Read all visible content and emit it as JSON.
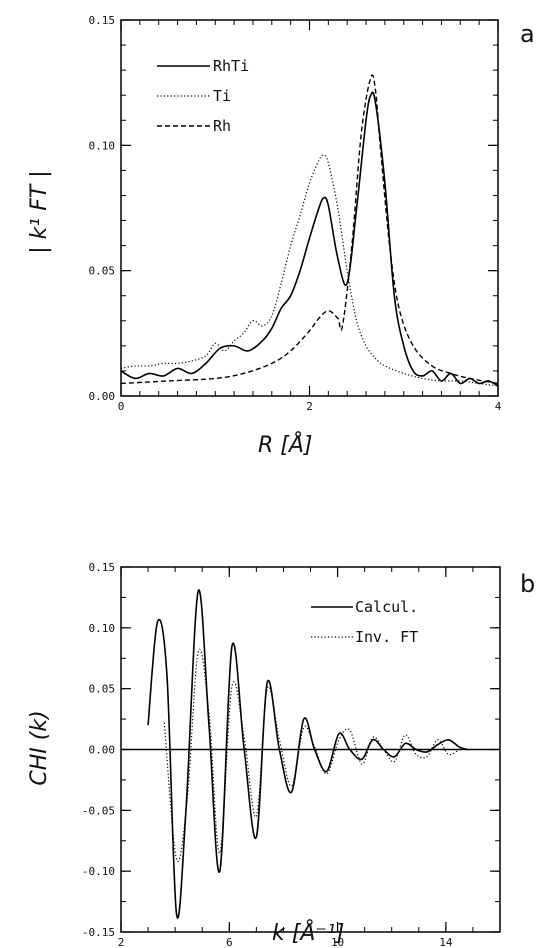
{
  "chart_data": [
    {
      "type": "line",
      "panel_label": "a",
      "xlabel": "R  [Å]",
      "ylabel": "| k¹ FT |",
      "xlim": [
        0,
        4
      ],
      "ylim": [
        0,
        0.15
      ],
      "x_ticks": [
        {
          "v": 0,
          "label": "0"
        },
        {
          "v": 2,
          "label": "2"
        },
        {
          "v": 4,
          "label": "4"
        }
      ],
      "y_ticks": [
        {
          "v": 0,
          "label": "0.00"
        },
        {
          "v": 0.05,
          "label": "0.05"
        },
        {
          "v": 0.1,
          "label": "0.10"
        },
        {
          "v": 0.15,
          "label": "0.15"
        }
      ],
      "legend_position": "top-left",
      "series": [
        {
          "name": "RhTi",
          "style": "solid",
          "x": [
            0,
            0.15,
            0.3,
            0.45,
            0.6,
            0.75,
            0.9,
            1.05,
            1.2,
            1.35,
            1.5,
            1.6,
            1.7,
            1.8,
            1.9,
            2.0,
            2.1,
            2.15,
            2.2,
            2.3,
            2.4,
            2.5,
            2.6,
            2.65,
            2.7,
            2.8,
            2.9,
            3.0,
            3.1,
            3.2,
            3.3,
            3.4,
            3.5,
            3.6,
            3.7,
            3.8,
            3.9,
            4.0
          ],
          "y": [
            0.01,
            0.007,
            0.009,
            0.008,
            0.011,
            0.009,
            0.013,
            0.019,
            0.02,
            0.018,
            0.022,
            0.027,
            0.035,
            0.04,
            0.05,
            0.063,
            0.075,
            0.079,
            0.076,
            0.055,
            0.045,
            0.075,
            0.11,
            0.12,
            0.117,
            0.085,
            0.04,
            0.02,
            0.01,
            0.008,
            0.01,
            0.006,
            0.009,
            0.005,
            0.007,
            0.005,
            0.006,
            0.004
          ]
        },
        {
          "name": "Ti",
          "style": "dotted",
          "x": [
            0,
            0.15,
            0.3,
            0.45,
            0.6,
            0.75,
            0.9,
            1.0,
            1.1,
            1.2,
            1.3,
            1.4,
            1.5,
            1.6,
            1.7,
            1.8,
            1.9,
            2.0,
            2.1,
            2.15,
            2.2,
            2.3,
            2.4,
            2.5,
            2.6,
            2.7,
            2.8,
            3.0,
            3.2,
            3.4,
            3.6,
            3.8,
            4.0
          ],
          "y": [
            0.011,
            0.012,
            0.012,
            0.013,
            0.013,
            0.014,
            0.016,
            0.021,
            0.018,
            0.022,
            0.025,
            0.03,
            0.028,
            0.032,
            0.045,
            0.06,
            0.072,
            0.085,
            0.094,
            0.096,
            0.093,
            0.075,
            0.05,
            0.03,
            0.02,
            0.015,
            0.012,
            0.009,
            0.007,
            0.006,
            0.006,
            0.005,
            0.004
          ]
        },
        {
          "name": "Rh",
          "style": "dashed",
          "x": [
            0,
            0.5,
            1.0,
            1.3,
            1.6,
            1.8,
            2.0,
            2.1,
            2.2,
            2.3,
            2.35,
            2.45,
            2.55,
            2.65,
            2.7,
            2.75,
            2.85,
            2.95,
            3.1,
            3.3,
            3.5,
            3.7,
            4.0
          ],
          "y": [
            0.005,
            0.006,
            0.007,
            0.009,
            0.013,
            0.018,
            0.026,
            0.031,
            0.034,
            0.031,
            0.028,
            0.06,
            0.105,
            0.127,
            0.122,
            0.1,
            0.06,
            0.035,
            0.02,
            0.012,
            0.009,
            0.007,
            0.005
          ]
        }
      ]
    },
    {
      "type": "line",
      "panel_label": "b",
      "xlabel": "k  [Å⁻¹]",
      "ylabel": "CHI (k)",
      "xlim": [
        2,
        16
      ],
      "ylim": [
        -0.15,
        0.15
      ],
      "x_ticks": [
        {
          "v": 2,
          "label": "2"
        },
        {
          "v": 6,
          "label": "6"
        },
        {
          "v": 10,
          "label": "10"
        },
        {
          "v": 14,
          "label": "14"
        }
      ],
      "y_ticks": [
        {
          "v": 0.15,
          "label": "0.15"
        },
        {
          "v": 0.1,
          "label": "0.10"
        },
        {
          "v": 0.05,
          "label": "0.05"
        },
        {
          "v": 0.0,
          "label": "0.00"
        },
        {
          "v": -0.05,
          "label": "-0.05"
        },
        {
          "v": -0.1,
          "label": "-0.10"
        },
        {
          "v": -0.15,
          "label": "-0.15"
        }
      ],
      "legend_position": "top-right",
      "zero_line": true,
      "series": [
        {
          "name": "Calcul.",
          "style": "solid",
          "x": [
            3.0,
            3.35,
            3.7,
            4.05,
            4.4,
            4.85,
            5.25,
            5.65,
            6.1,
            6.55,
            7.0,
            7.4,
            7.85,
            8.3,
            8.75,
            9.15,
            9.6,
            10.05,
            10.45,
            10.9,
            11.3,
            11.7,
            12.1,
            12.5,
            12.9,
            13.3,
            13.7,
            14.1,
            14.5,
            14.8
          ],
          "y": [
            0.02,
            0.105,
            0.06,
            -0.135,
            -0.05,
            0.13,
            0.02,
            -0.1,
            0.085,
            0.0,
            -0.072,
            0.055,
            0.0,
            -0.035,
            0.025,
            0.0,
            -0.018,
            0.013,
            0.0,
            -0.008,
            0.008,
            0.0,
            -0.006,
            0.005,
            0.0,
            -0.002,
            0.004,
            0.008,
            0.002,
            0.0
          ]
        },
        {
          "name": "Inv. FT",
          "style": "dotted",
          "x": [
            3.6,
            4.05,
            4.45,
            4.85,
            5.25,
            5.65,
            6.1,
            6.55,
            7.0,
            7.4,
            7.85,
            8.3,
            8.75,
            9.15,
            9.6,
            10.05,
            10.45,
            10.9,
            11.3,
            11.7,
            12.1,
            12.5,
            12.9,
            13.3,
            13.7,
            14.1,
            14.5
          ],
          "y": [
            0.022,
            -0.09,
            -0.04,
            0.08,
            0.03,
            -0.085,
            0.052,
            0.01,
            -0.055,
            0.05,
            0.008,
            -0.03,
            0.018,
            0.002,
            -0.02,
            0.008,
            0.016,
            -0.012,
            0.01,
            0.0,
            -0.01,
            0.012,
            -0.004,
            -0.006,
            0.008,
            -0.004,
            0.0
          ]
        }
      ]
    }
  ],
  "legend_labels": {
    "a": [
      "RhTi",
      "Ti",
      "Rh"
    ],
    "b": [
      "Calcul.",
      "Inv. FT"
    ]
  }
}
